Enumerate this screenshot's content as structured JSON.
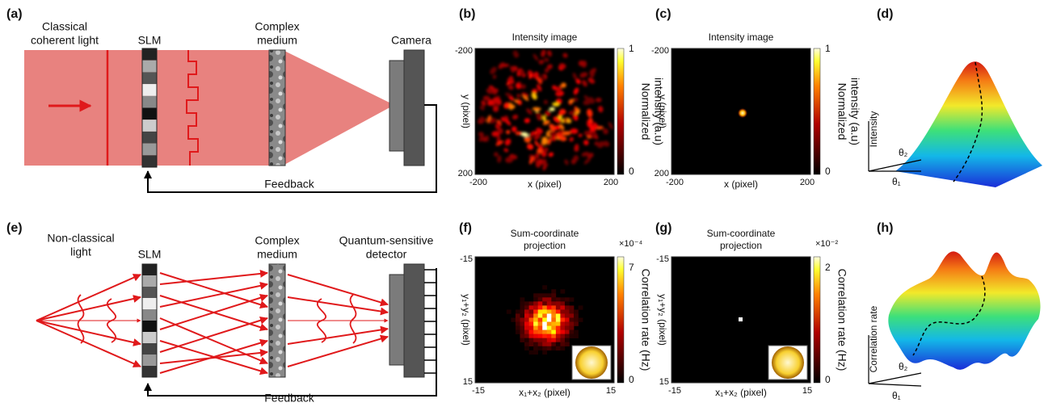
{
  "panels": {
    "a": {
      "label": "(a)",
      "source": [
        "Classical",
        "coherent light"
      ],
      "modulator": "SLM",
      "medium": [
        "Complex",
        "medium"
      ],
      "detector": [
        "Camera"
      ],
      "feedback": "Feedback"
    },
    "b": {
      "label": "(b)",
      "title": [
        "Intensity image"
      ],
      "x_label": "x (pixel)",
      "y_label": "y (pixel)",
      "x_ticks": [
        "-200",
        "200"
      ],
      "y_ticks": [
        "-200",
        "200"
      ],
      "colorbar_label": [
        "Normalized",
        "intensity (a.u)"
      ],
      "colorbar_ticks": [
        "1",
        "0"
      ]
    },
    "c": {
      "label": "(c)",
      "title": [
        "Intensity image"
      ],
      "x_label": "x (pixel)",
      "y_label": "y (pixel)",
      "x_ticks": [
        "-200",
        "200"
      ],
      "y_ticks": [
        "-200",
        "200"
      ],
      "colorbar_label": [
        "Normalized",
        "intensity (a.u)"
      ],
      "colorbar_ticks": [
        "1",
        "0"
      ]
    },
    "d": {
      "label": "(d)",
      "z_label": "Intensity",
      "axis_1": "θ₁",
      "axis_2": "θ₂"
    },
    "e": {
      "label": "(e)",
      "source": [
        "Non-classical",
        "light"
      ],
      "modulator": "SLM",
      "medium": [
        "Complex",
        "medium"
      ],
      "detector": [
        "Quantum-sensitive",
        "detector"
      ],
      "feedback": "Feedback"
    },
    "f": {
      "label": "(f)",
      "title": [
        "Sum-coordinate",
        "projection"
      ],
      "x_label": "x₁+x₂ (pixel)",
      "y_label": "y₁+y₂ (pixel)",
      "x_ticks": [
        "-15",
        "15"
      ],
      "y_ticks": [
        "-15",
        "15"
      ],
      "colorbar_label": [
        "Correlation rate (Hz)"
      ],
      "colorbar_scale": "×10⁻⁴",
      "colorbar_ticks": [
        "7",
        "0"
      ]
    },
    "g": {
      "label": "(g)",
      "title": [
        "Sum-coordinate",
        "projection"
      ],
      "x_label": "x₁+x₂ (pixel)",
      "y_label": "y₁+y₂ (pixel)",
      "x_ticks": [
        "-15",
        "15"
      ],
      "y_ticks": [
        "-15",
        "15"
      ],
      "colorbar_label": [
        "Correlation rate (Hz)"
      ],
      "colorbar_scale": "×10⁻²",
      "colorbar_ticks": [
        "2",
        "0"
      ]
    },
    "h": {
      "label": "(h)",
      "z_label": "Correlation rate",
      "axis_1": "θ₁",
      "axis_2": "θ₂"
    }
  }
}
